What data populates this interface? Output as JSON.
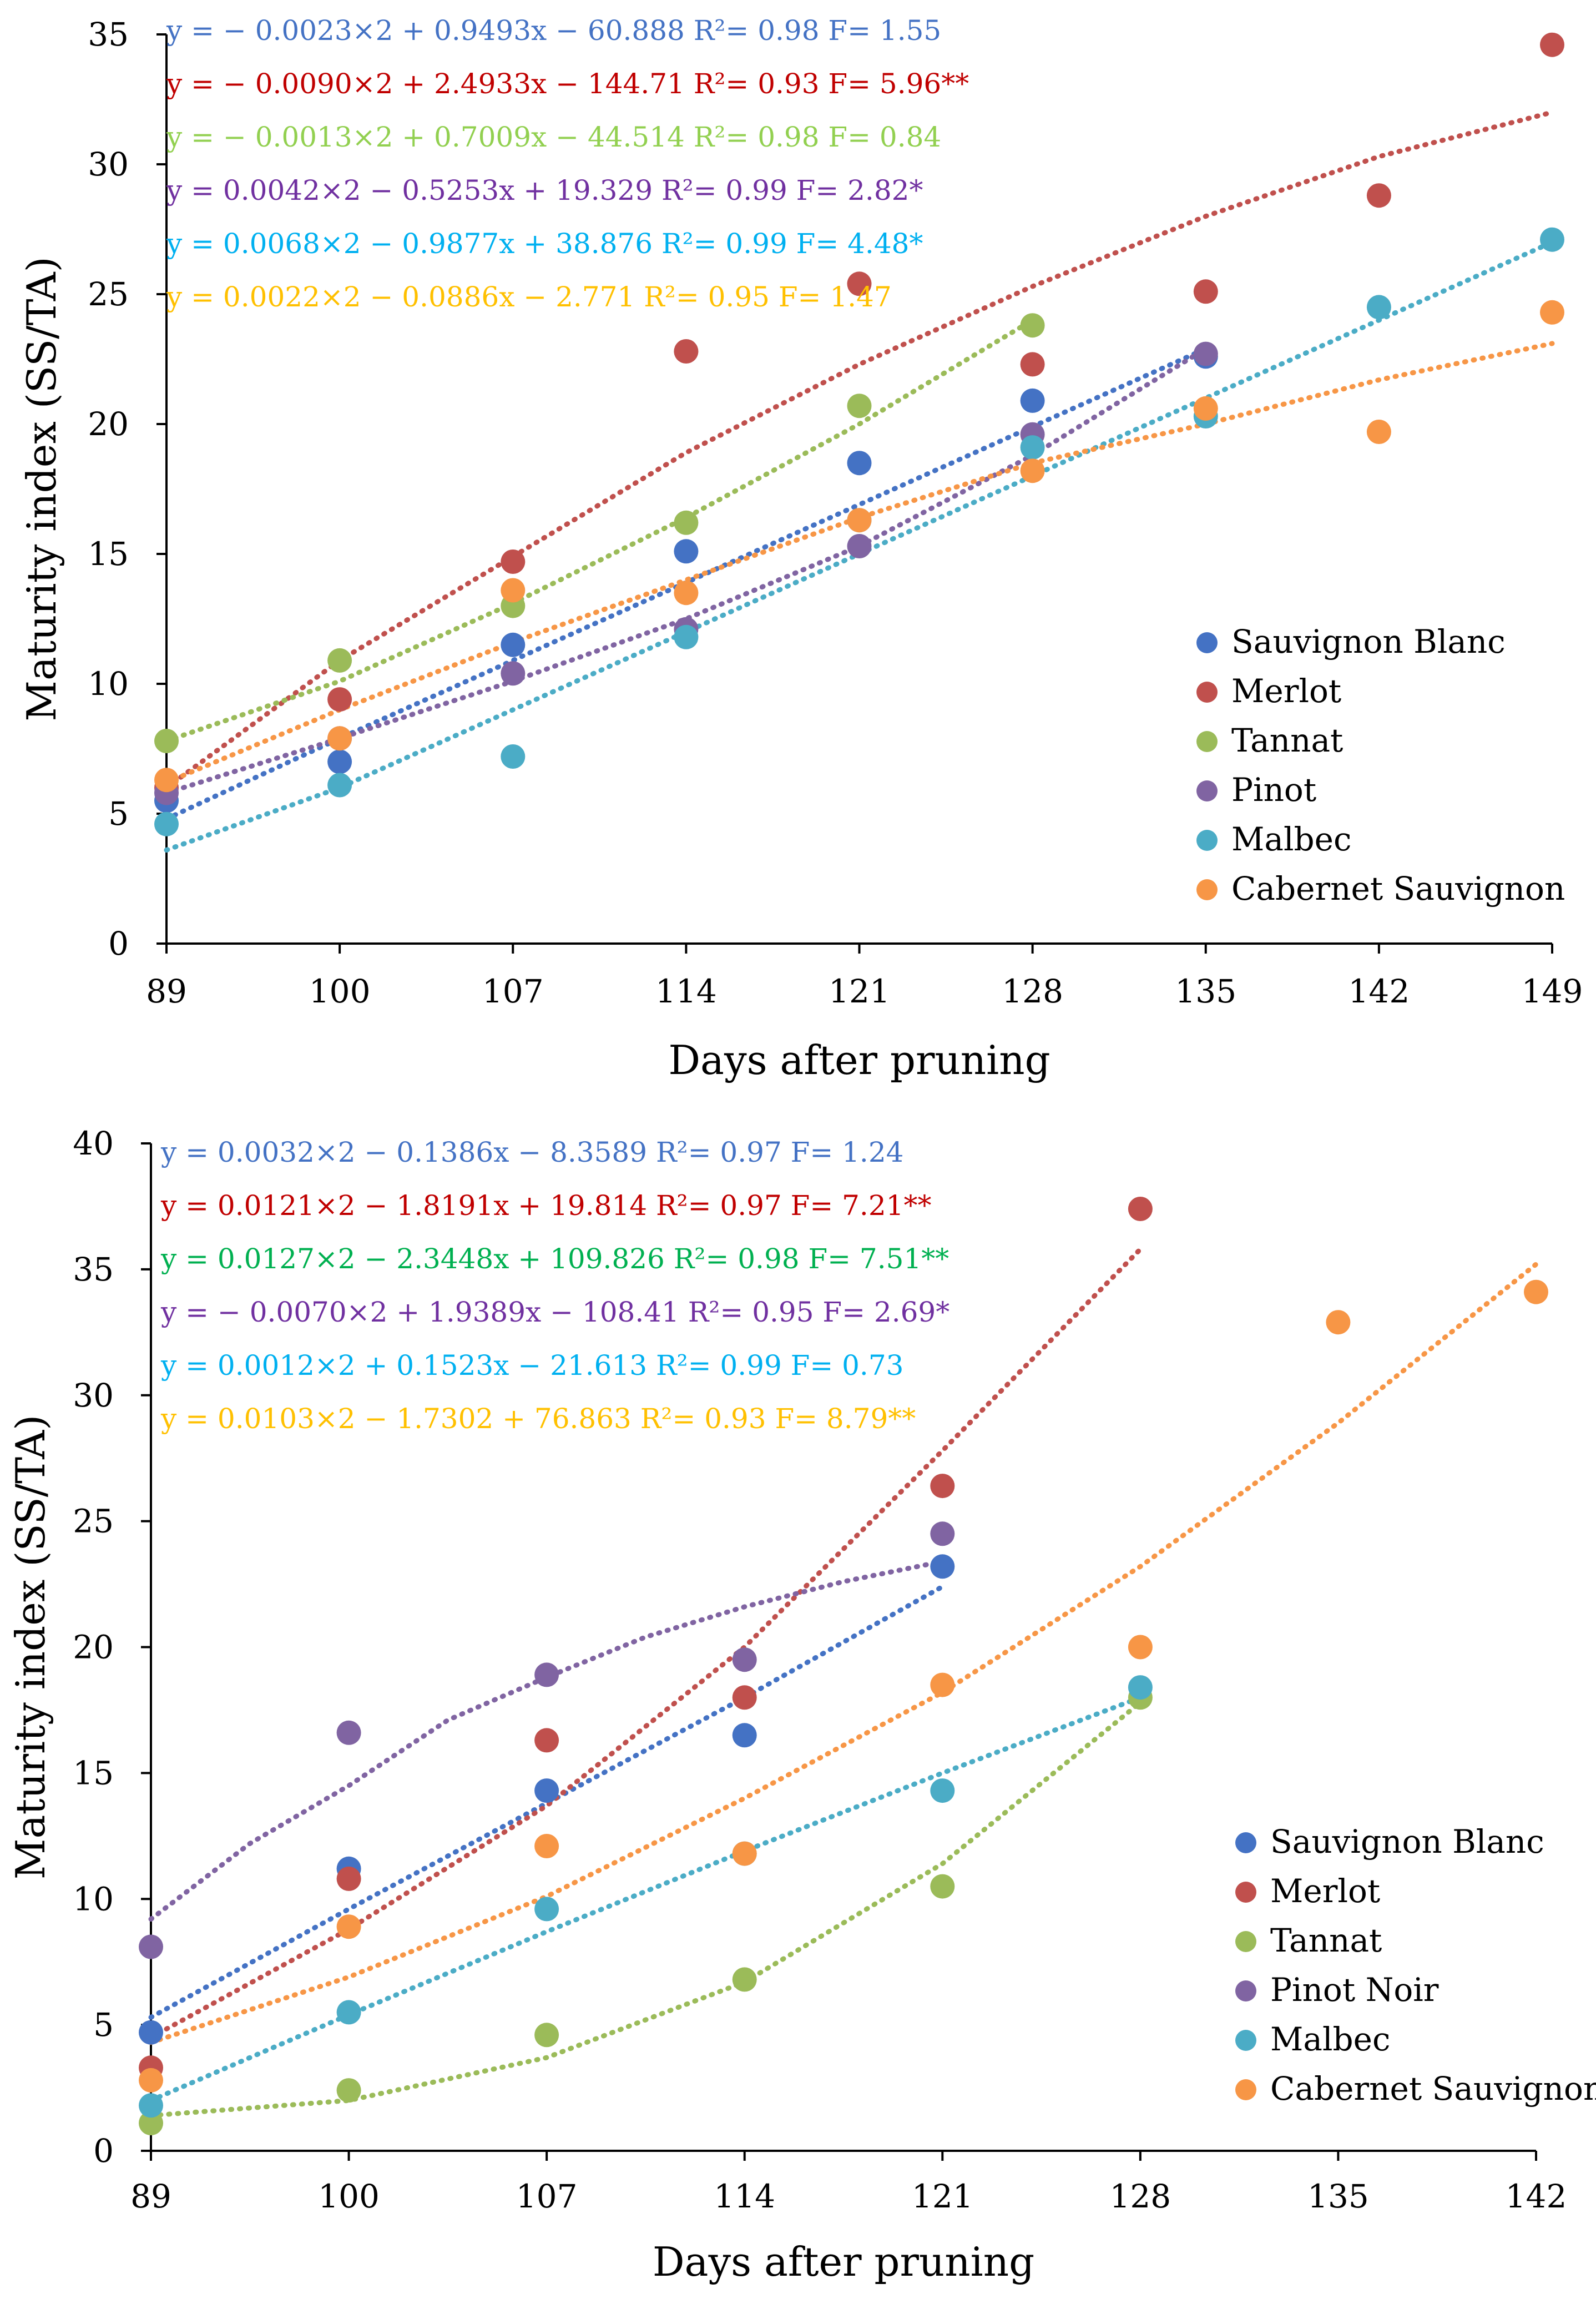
{
  "colors": {
    "Sauvignon Blanc": "#4472C4",
    "Merlot": "#C0504D",
    "Tannat": "#9BBB59",
    "Pinot": "#8064A2",
    "Pinot Noir": "#8064A2",
    "Malbec": "#4BACC6",
    "Cabernet Sauvignon": "#F79646"
  },
  "chart_data": [
    {
      "type": "scatter",
      "xlabel": "Days after pruning",
      "ylabel": "Maturity index  (SS/TA)",
      "x_ticks": [
        "89",
        "100",
        "107",
        "114",
        "121",
        "128",
        "135",
        "142",
        "149"
      ],
      "ylim": [
        0,
        35
      ],
      "y_ticks": [
        "0",
        "5",
        "10",
        "15",
        "20",
        "25",
        "30",
        "35"
      ],
      "legend": [
        "Sauvignon Blanc",
        "Merlot",
        "Tannat",
        "Pinot",
        "Malbec",
        "Cabernet Sauvignon"
      ],
      "equations": [
        {
          "text": "y = − 0.0023×2 + 0.9493x − 60.888 R²= 0.98 F= 1.55",
          "color": "#4472C4"
        },
        {
          "text": "y = − 0.0090×2 + 2.4933x − 144.71 R²= 0.93 F= 5.96**",
          "color": "#C00000"
        },
        {
          "text": "y = − 0.0013×2 + 0.7009x − 44.514 R²= 0.98 F= 0.84",
          "color": "#92D050"
        },
        {
          "text": "y = 0.0042×2 − 0.5253x + 19.329 R²= 0.99 F= 2.82*",
          "color": "#7030A0"
        },
        {
          "text": "y = 0.0068×2 − 0.9877x + 38.876 R²= 0.99 F= 4.48*",
          "color": "#00B0F0"
        },
        {
          "text": "y = 0.0022×2 − 0.0886x − 2.771 R²= 0.95 F= 1.47",
          "color": "#FFC000"
        }
      ],
      "series": [
        {
          "name": "Sauvignon Blanc",
          "x": [
            0,
            1,
            2,
            3,
            4,
            5,
            6
          ],
          "y": [
            5.5,
            7.0,
            11.5,
            15.1,
            18.5,
            20.9,
            22.6
          ],
          "trend": {
            "x": [
              0,
              1,
              2,
              3,
              4,
              5,
              6
            ],
            "y": [
              4.8,
              7.9,
              10.9,
              13.9,
              16.9,
              19.9,
              22.9
            ]
          }
        },
        {
          "name": "Merlot",
          "x": [
            0,
            1,
            2,
            3,
            4,
            5,
            6,
            7,
            8
          ],
          "y": [
            6.0,
            9.4,
            14.7,
            22.8,
            25.4,
            22.3,
            25.1,
            28.8,
            34.6
          ],
          "trend": {
            "x": [
              0,
              1,
              2,
              3,
              4,
              5,
              6,
              7,
              8
            ],
            "y": [
              6.0,
              10.9,
              14.9,
              18.9,
              22.3,
              25.3,
              28.0,
              30.3,
              32.0
            ]
          }
        },
        {
          "name": "Tannat",
          "x": [
            0,
            1,
            2,
            3,
            4,
            5
          ],
          "y": [
            7.8,
            10.9,
            13.0,
            16.2,
            20.7,
            23.8
          ],
          "trend": {
            "x": [
              0,
              1,
              2,
              3,
              4,
              5
            ],
            "y": [
              7.8,
              10.1,
              13.1,
              16.4,
              20.0,
              24.0
            ]
          }
        },
        {
          "name": "Pinot",
          "x": [
            0,
            1,
            2,
            3,
            4,
            5,
            6
          ],
          "y": [
            5.8,
            7.9,
            10.4,
            12.1,
            15.3,
            19.6,
            22.7
          ],
          "trend": {
            "x": [
              0,
              1,
              2,
              3,
              4,
              5,
              6
            ],
            "y": [
              5.8,
              7.9,
              10.1,
              12.5,
              15.3,
              18.8,
              22.9
            ]
          }
        },
        {
          "name": "Malbec",
          "x": [
            0,
            1,
            2,
            3,
            4,
            5,
            6,
            7,
            8
          ],
          "y": [
            4.6,
            6.1,
            7.2,
            11.8,
            16.3,
            19.1,
            20.3,
            24.5,
            27.1
          ],
          "trend": {
            "x": [
              0,
              1,
              2,
              3,
              4,
              5,
              6,
              7,
              8
            ],
            "y": [
              3.6,
              6.0,
              9.0,
              12.0,
              15.0,
              18.0,
              21.0,
              24.0,
              27.0
            ]
          }
        },
        {
          "name": "Cabernet Sauvignon",
          "x": [
            0,
            1,
            2,
            3,
            4,
            5,
            6,
            7,
            8
          ],
          "y": [
            6.3,
            7.9,
            13.6,
            13.5,
            16.3,
            18.2,
            20.6,
            19.7,
            24.3
          ],
          "trend": {
            "x": [
              0,
              1,
              2,
              3,
              4,
              5,
              6,
              7,
              8
            ],
            "y": [
              6.2,
              9.0,
              11.6,
              14.0,
              16.4,
              18.5,
              20.0,
              21.7,
              23.1
            ]
          }
        }
      ]
    },
    {
      "type": "scatter",
      "xlabel": "Days after pruning",
      "ylabel": "Maturity index  (SS/TA)",
      "x_ticks": [
        "89",
        "100",
        "107",
        "114",
        "121",
        "128",
        "135",
        "142"
      ],
      "ylim": [
        0,
        40
      ],
      "y_ticks": [
        "0",
        "5",
        "10",
        "15",
        "20",
        "25",
        "30",
        "35",
        "40"
      ],
      "legend": [
        "Sauvignon Blanc",
        "Merlot",
        "Tannat",
        "Pinot Noir",
        "Malbec",
        "Cabernet Sauvignon"
      ],
      "equations": [
        {
          "text": "y = 0.0032×2  − 0.1386x − 8.3589 R²= 0.97 F= 1.24",
          "color": "#4472C4"
        },
        {
          "text": "y = 0.0121×2 − 1.8191x + 19.814 R²= 0.97 F= 7.21**",
          "color": "#C00000"
        },
        {
          "text": "y = 0.0127×2 − 2.3448x + 109.826 R²= 0.98 F= 7.51**",
          "color": "#00B050"
        },
        {
          "text": "y = − 0.0070×2 + 1.9389x − 108.41 R²= 0.95 F= 2.69*",
          "color": "#7030A0"
        },
        {
          "text": "y = 0.0012×2 + 0.1523x − 21.613 R²= 0.99 F= 0.73",
          "color": "#00B0F0"
        },
        {
          "text": "y = 0.0103×2 − 1.7302 + 76.863 R²= 0.93 F= 8.79**",
          "color": "#FFC000"
        }
      ],
      "series": [
        {
          "name": "Sauvignon Blanc",
          "x": [
            0,
            1,
            2,
            3,
            4
          ],
          "y": [
            4.7,
            11.2,
            14.3,
            16.5,
            23.2
          ],
          "trend": {
            "x": [
              0,
              1,
              2,
              3,
              4
            ],
            "y": [
              5.3,
              9.6,
              13.8,
              18.0,
              22.4
            ]
          }
        },
        {
          "name": "Merlot",
          "x": [
            0,
            1,
            2,
            3,
            4,
            5
          ],
          "y": [
            3.3,
            10.8,
            16.3,
            18.0,
            26.4,
            37.4
          ],
          "trend": {
            "x": [
              0,
              1,
              2,
              3,
              4,
              4.5,
              5
            ],
            "y": [
              4.5,
              8.8,
              13.7,
              20.0,
              27.8,
              31.8,
              35.8
            ]
          }
        },
        {
          "name": "Tannat",
          "x": [
            0,
            1,
            2,
            3,
            4,
            5
          ],
          "y": [
            1.1,
            2.4,
            4.6,
            6.8,
            10.5,
            18.0
          ],
          "trend": {
            "x": [
              0,
              1,
              2,
              3,
              4,
              5
            ],
            "y": [
              1.4,
              2.0,
              3.7,
              6.7,
              11.4,
              17.8
            ]
          }
        },
        {
          "name": "Pinot Noir",
          "x": [
            0,
            1,
            2,
            3,
            4
          ],
          "y": [
            8.1,
            16.6,
            18.9,
            19.5,
            24.5
          ],
          "trend": {
            "x": [
              0,
              0.5,
              1,
              1.5,
              2,
              2.5,
              3,
              3.5,
              4
            ],
            "y": [
              9.2,
              12.2,
              14.5,
              17.1,
              18.8,
              20.4,
              21.6,
              22.6,
              23.4
            ]
          }
        },
        {
          "name": "Malbec",
          "x": [
            0,
            1,
            2,
            3,
            4,
            5
          ],
          "y": [
            1.8,
            5.5,
            9.6,
            11.8,
            14.3,
            18.4
          ],
          "trend": {
            "x": [
              0,
              1,
              2,
              3,
              4,
              5
            ],
            "y": [
              2.0,
              5.4,
              8.7,
              11.9,
              15.0,
              18.0
            ]
          }
        },
        {
          "name": "Cabernet Sauvignon",
          "x": [
            0,
            1,
            2,
            3,
            4,
            5,
            6,
            7
          ],
          "y": [
            2.8,
            8.9,
            12.1,
            11.8,
            18.5,
            20.0,
            32.9,
            34.1
          ],
          "trend": {
            "x": [
              0,
              1,
              2,
              3,
              4,
              5,
              6,
              7
            ],
            "y": [
              4.3,
              6.9,
              10.1,
              14.0,
              18.2,
              23.2,
              28.9,
              35.2
            ]
          }
        }
      ]
    }
  ]
}
